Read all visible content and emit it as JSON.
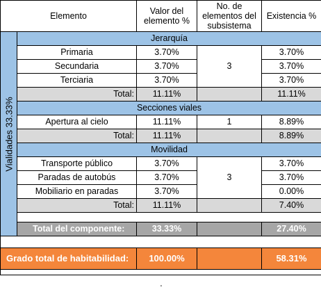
{
  "header": {
    "elemento": "Elemento",
    "valor": "Valor del elemento %",
    "num": "No. de elementos del subsistema",
    "existencia": "Existencia %"
  },
  "side_label": "Vialidades 33.33%",
  "sections": [
    {
      "title": "Jerarquía",
      "count": "3",
      "rows": [
        {
          "name": "Primaria",
          "valor": "3.70%",
          "existencia": "3.70%"
        },
        {
          "name": "Secundaria",
          "valor": "3.70%",
          "existencia": "3.70%"
        },
        {
          "name": "Terciaria",
          "valor": "3.70%",
          "existencia": "3.70%"
        }
      ],
      "total": {
        "label": "Total:",
        "valor": "11.11%",
        "existencia": "11.11%"
      }
    },
    {
      "title": "Secciones viales",
      "count": "1",
      "rows": [
        {
          "name": "Apertura al cielo",
          "valor": "11.11%",
          "existencia": "8.89%"
        }
      ],
      "total": {
        "label": "Total:",
        "valor": "11.11%",
        "existencia": "8.89%"
      }
    },
    {
      "title": "Movilidad",
      "count": "3",
      "rows": [
        {
          "name": "Transporte público",
          "valor": "3.70%",
          "existencia": "3.70%"
        },
        {
          "name": "Paradas de autobús",
          "valor": "3.70%",
          "existencia": "3.70%"
        },
        {
          "name": "Mobiliario en paradas",
          "valor": "3.70%",
          "existencia": "0.00%"
        }
      ],
      "total": {
        "label": "Total:",
        "valor": "11.11%",
        "existencia": "7.40%"
      }
    }
  ],
  "componente": {
    "label": "Total del componente:",
    "valor": "33.33%",
    "existencia": "27.40%"
  },
  "grado": {
    "label": "Grado total de habitabilidad:",
    "valor": "100.00%",
    "existencia": "58.31%"
  },
  "bottom_mark": "'"
}
